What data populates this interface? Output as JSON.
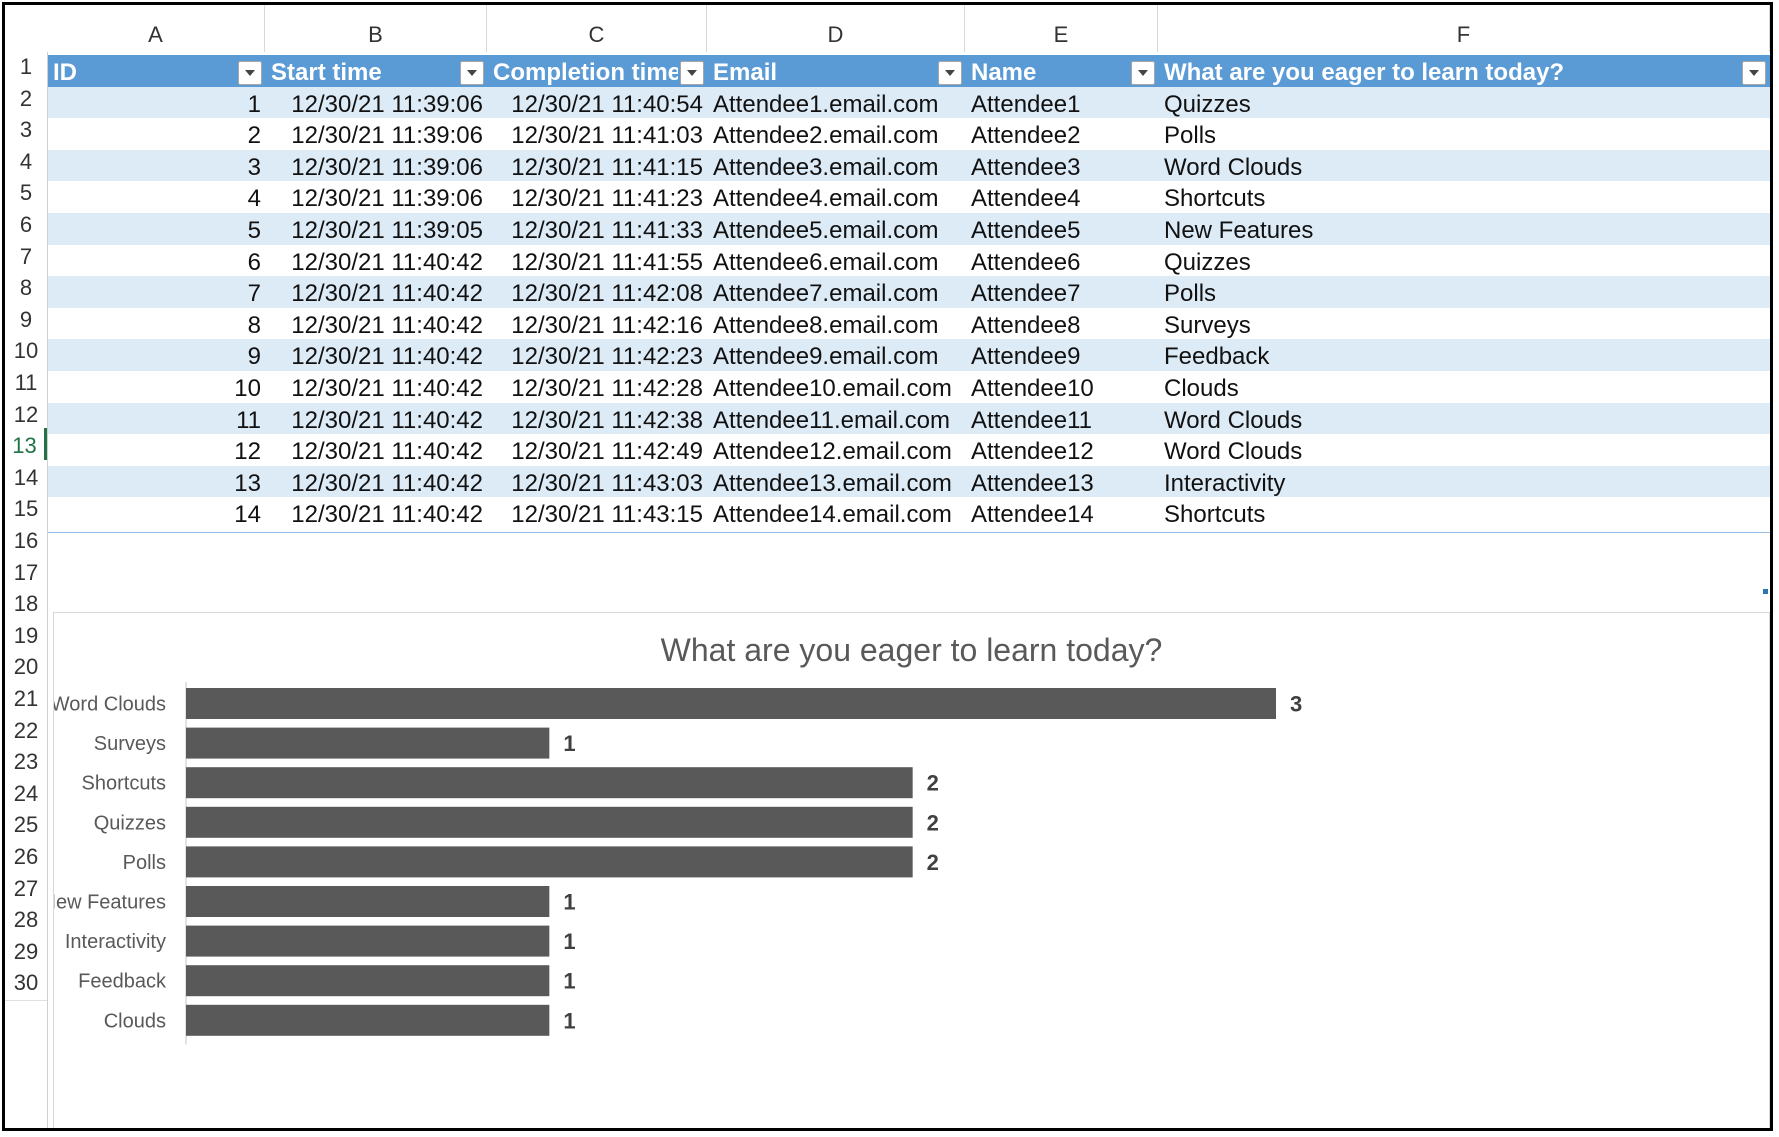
{
  "columns": [
    "A",
    "B",
    "C",
    "D",
    "E",
    "F"
  ],
  "row_numbers": [
    "1",
    "2",
    "3",
    "4",
    "5",
    "6",
    "7",
    "8",
    "9",
    "10",
    "11",
    "12",
    "13",
    "14",
    "15",
    "16",
    "17",
    "18",
    "19",
    "20",
    "21",
    "22",
    "23",
    "24",
    "25",
    "26",
    "27",
    "28",
    "29",
    "30"
  ],
  "active_row": "13",
  "table": {
    "headers": [
      "ID",
      "Start time",
      "Completion time",
      "Email",
      "Name",
      "What are you eager to learn today?"
    ],
    "rows": [
      [
        "1",
        "12/30/21 11:39:06",
        "12/30/21 11:40:54",
        "Attendee1.email.com",
        "Attendee1",
        "Quizzes"
      ],
      [
        "2",
        "12/30/21 11:39:06",
        "12/30/21 11:41:03",
        "Attendee2.email.com",
        "Attendee2",
        "Polls"
      ],
      [
        "3",
        "12/30/21 11:39:06",
        "12/30/21 11:41:15",
        "Attendee3.email.com",
        "Attendee3",
        "Word Clouds"
      ],
      [
        "4",
        "12/30/21 11:39:06",
        "12/30/21 11:41:23",
        "Attendee4.email.com",
        "Attendee4",
        "Shortcuts"
      ],
      [
        "5",
        "12/30/21 11:39:05",
        "12/30/21 11:41:33",
        "Attendee5.email.com",
        "Attendee5",
        "New Features"
      ],
      [
        "6",
        "12/30/21 11:40:42",
        "12/30/21 11:41:55",
        "Attendee6.email.com",
        "Attendee6",
        "Quizzes"
      ],
      [
        "7",
        "12/30/21 11:40:42",
        "12/30/21 11:42:08",
        "Attendee7.email.com",
        "Attendee7",
        "Polls"
      ],
      [
        "8",
        "12/30/21 11:40:42",
        "12/30/21 11:42:16",
        "Attendee8.email.com",
        "Attendee8",
        "Surveys"
      ],
      [
        "9",
        "12/30/21 11:40:42",
        "12/30/21 11:42:23",
        "Attendee9.email.com",
        "Attendee9",
        "Feedback"
      ],
      [
        "10",
        "12/30/21 11:40:42",
        "12/30/21 11:42:28",
        "Attendee10.email.com",
        "Attendee10",
        "Clouds"
      ],
      [
        "11",
        "12/30/21 11:40:42",
        "12/30/21 11:42:38",
        "Attendee11.email.com",
        "Attendee11",
        "Word Clouds"
      ],
      [
        "12",
        "12/30/21 11:40:42",
        "12/30/21 11:42:49",
        "Attendee12.email.com",
        "Attendee12",
        "Word Clouds"
      ],
      [
        "13",
        "12/30/21 11:40:42",
        "12/30/21 11:43:03",
        "Attendee13.email.com",
        "Attendee13",
        "Interactivity"
      ],
      [
        "14",
        "12/30/21 11:40:42",
        "12/30/21 11:43:15",
        "Attendee14.email.com",
        "Attendee14",
        "Shortcuts"
      ]
    ]
  },
  "colors": {
    "header_fill": "#5b9bd5",
    "band_fill": "#ddebf7",
    "bar_fill": "#595959",
    "active_row_header": "#217346"
  },
  "chart_data": {
    "type": "bar",
    "orientation": "horizontal",
    "title": "What are you eager to learn today?",
    "categories": [
      "Word Clouds",
      "Surveys",
      "Shortcuts",
      "Quizzes",
      "Polls",
      "New Features",
      "Interactivity",
      "Feedback",
      "Clouds"
    ],
    "values": [
      3,
      1,
      2,
      2,
      2,
      1,
      1,
      1,
      1
    ],
    "xlim": [
      0,
      3.6
    ],
    "data_labels": true,
    "grid": false,
    "legend": false
  }
}
